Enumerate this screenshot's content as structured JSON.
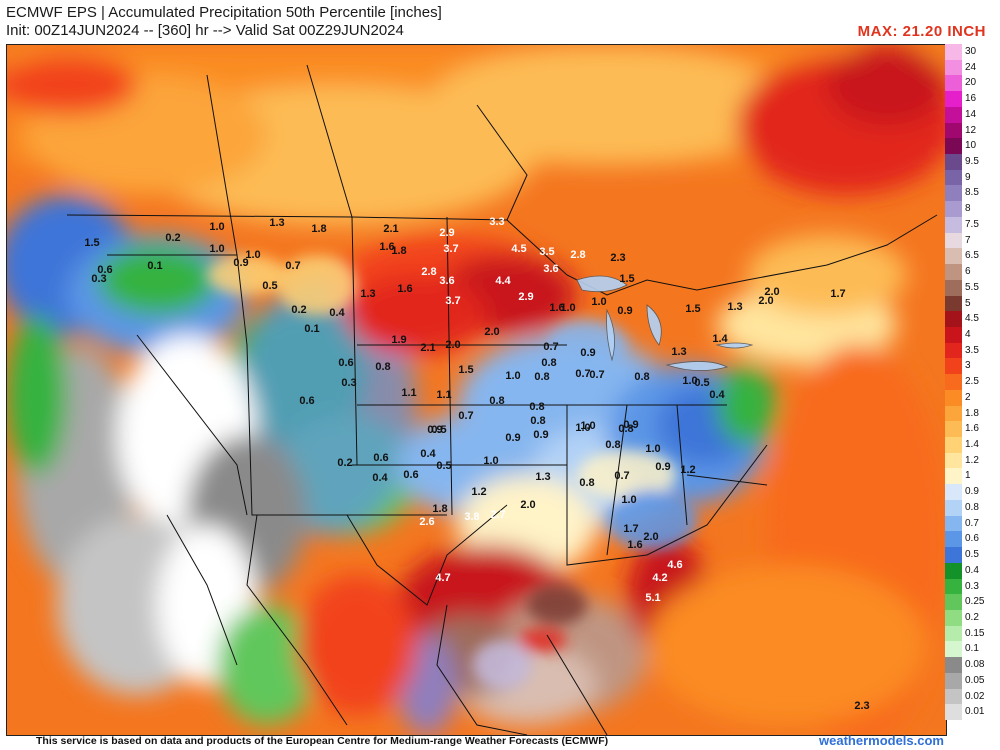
{
  "header": {
    "title": "ECMWF EPS | Accumulated Precipitation 50th Percentile [inches]",
    "subtitle": "Init: 00Z14JUN2024 -- [360] hr --> Valid Sat 00Z29JUN2024",
    "max_label": "MAX: 21.20 INCH"
  },
  "legend": {
    "items": [
      {
        "label": "30",
        "color": "#f7b8e8"
      },
      {
        "label": "24",
        "color": "#f38fe0"
      },
      {
        "label": "20",
        "color": "#ec5fd8"
      },
      {
        "label": "16",
        "color": "#e51fc9"
      },
      {
        "label": "14",
        "color": "#c40f9b"
      },
      {
        "label": "12",
        "color": "#a1086f"
      },
      {
        "label": "10",
        "color": "#7a0855"
      },
      {
        "label": "9.5",
        "color": "#6a4a8c"
      },
      {
        "label": "9",
        "color": "#7a64a8"
      },
      {
        "label": "8.5",
        "color": "#8f7fbd"
      },
      {
        "label": "8",
        "color": "#a99bd0"
      },
      {
        "label": "7.5",
        "color": "#c5bce0"
      },
      {
        "label": "7",
        "color": "#e8d8e0"
      },
      {
        "label": "6.5",
        "color": "#d9bdb0"
      },
      {
        "label": "6",
        "color": "#bf9582"
      },
      {
        "label": "5.5",
        "color": "#9f6d5c"
      },
      {
        "label": "5",
        "color": "#7a3a30"
      },
      {
        "label": "4.5",
        "color": "#a4131a"
      },
      {
        "label": "4",
        "color": "#c8141a"
      },
      {
        "label": "3.5",
        "color": "#e2261e"
      },
      {
        "label": "3",
        "color": "#f2421c"
      },
      {
        "label": "2.5",
        "color": "#f86a1e"
      },
      {
        "label": "2",
        "color": "#fb8b24"
      },
      {
        "label": "1.8",
        "color": "#fca53a"
      },
      {
        "label": "1.6",
        "color": "#fdbb55"
      },
      {
        "label": "1.4",
        "color": "#fed275"
      },
      {
        "label": "1.2",
        "color": "#ffe59e"
      },
      {
        "label": "1",
        "color": "#fff3c8"
      },
      {
        "label": "0.9",
        "color": "#d8e8fa"
      },
      {
        "label": "0.8",
        "color": "#b2d2f6"
      },
      {
        "label": "0.7",
        "color": "#86b6ef"
      },
      {
        "label": "0.6",
        "color": "#5c96e6"
      },
      {
        "label": "0.5",
        "color": "#3d75d8"
      },
      {
        "label": "0.4",
        "color": "#14922a"
      },
      {
        "label": "0.3",
        "color": "#36b23f"
      },
      {
        "label": "0.25",
        "color": "#61c75c"
      },
      {
        "label": "0.2",
        "color": "#8fdc83"
      },
      {
        "label": "0.15",
        "color": "#b6ecab"
      },
      {
        "label": "0.1",
        "color": "#d6f6cf"
      },
      {
        "label": "0.08",
        "color": "#8a8a8a"
      },
      {
        "label": "0.05",
        "color": "#a8a8a8"
      },
      {
        "label": "0.02",
        "color": "#c4c4c4"
      },
      {
        "label": "0.01",
        "color": "#dedede"
      }
    ]
  },
  "map_values": [
    "1.5",
    "0.2",
    "1.0",
    "1.3",
    "1.8",
    "2.1",
    "2.9",
    "3.3",
    "4.5",
    "3.5",
    "2.8",
    "2.3",
    "1.6",
    "1.0",
    "0.9",
    "1.0",
    "0.7",
    "0.1",
    "0.6",
    "0.3",
    "0.5",
    "0.2",
    "0.1",
    "0.4",
    "1.8",
    "3.7",
    "2.8",
    "3.6",
    "4.4",
    "3.6",
    "1.5",
    "1.3",
    "1.6",
    "3.7",
    "2.9",
    "2.0",
    "1.6",
    "1.0",
    "0.9",
    "1.5",
    "1.3",
    "2.0",
    "1.7",
    "1.0",
    "2.0",
    "1.9",
    "2.1",
    "2.0",
    "0.7",
    "0.8",
    "1.3",
    "1.4",
    "0.6",
    "0.8",
    "1.5",
    "1.0",
    "0.8",
    "0.9",
    "0.7",
    "0.8",
    "0.3",
    "1.1",
    "1.1",
    "0.8",
    "0.8",
    "0.5",
    "0.4",
    "0.6",
    "0.9",
    "0.7",
    "0.8",
    "1.0",
    "0.8",
    "0.7",
    "1.0",
    "0.5",
    "0.9",
    "0.9",
    "1.0",
    "0.9",
    "0.8",
    "1.0",
    "0.4",
    "1.2",
    "0.2",
    "0.6",
    "0.4",
    "0.6",
    "0.5",
    "1.0",
    "1.3",
    "0.8",
    "0.7",
    "0.9",
    "1.2",
    "2.0",
    "1.0",
    "1.6",
    "1.8",
    "2.6",
    "3.8",
    "2.7",
    "1.7",
    "2.0",
    "4.6",
    "4.2",
    "4.7",
    "5.1",
    "2.3"
  ],
  "footer": {
    "attribution": "This service is based on data and products of the European Centre for Medium-range Weather Forecasts (ECMWF)",
    "brand": "weathermodels.com"
  }
}
